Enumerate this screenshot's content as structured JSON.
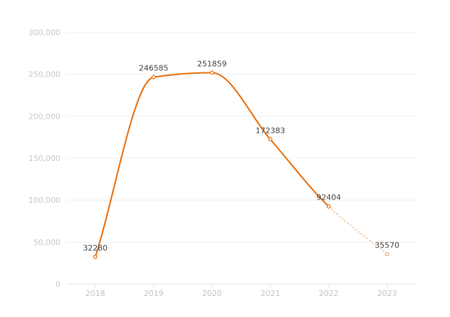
{
  "chart_data": {
    "type": "line",
    "title": "",
    "xlabel": "",
    "ylabel": "",
    "categories": [
      "2018",
      "2019",
      "2020",
      "2021",
      "2022",
      "2023"
    ],
    "series": [
      {
        "values": [
          32280,
          246585,
          251859,
          172383,
          92404,
          35570
        ],
        "data_labels": [
          "32280",
          "246585",
          "251859",
          "172383",
          "92404",
          "35570"
        ],
        "projected_from_index": 4,
        "color": "#e8771c",
        "projected_color": "#f0a868"
      }
    ],
    "ylim": [
      0,
      300000
    ],
    "yticks": [
      0,
      50000,
      100000,
      150000,
      200000,
      250000,
      300000
    ],
    "ytick_labels": [
      "0",
      "50,000",
      "100,000",
      "150,000",
      "200,000",
      "250,000",
      "300,000"
    ],
    "grid": true,
    "legend": "none",
    "smooth": true
  }
}
